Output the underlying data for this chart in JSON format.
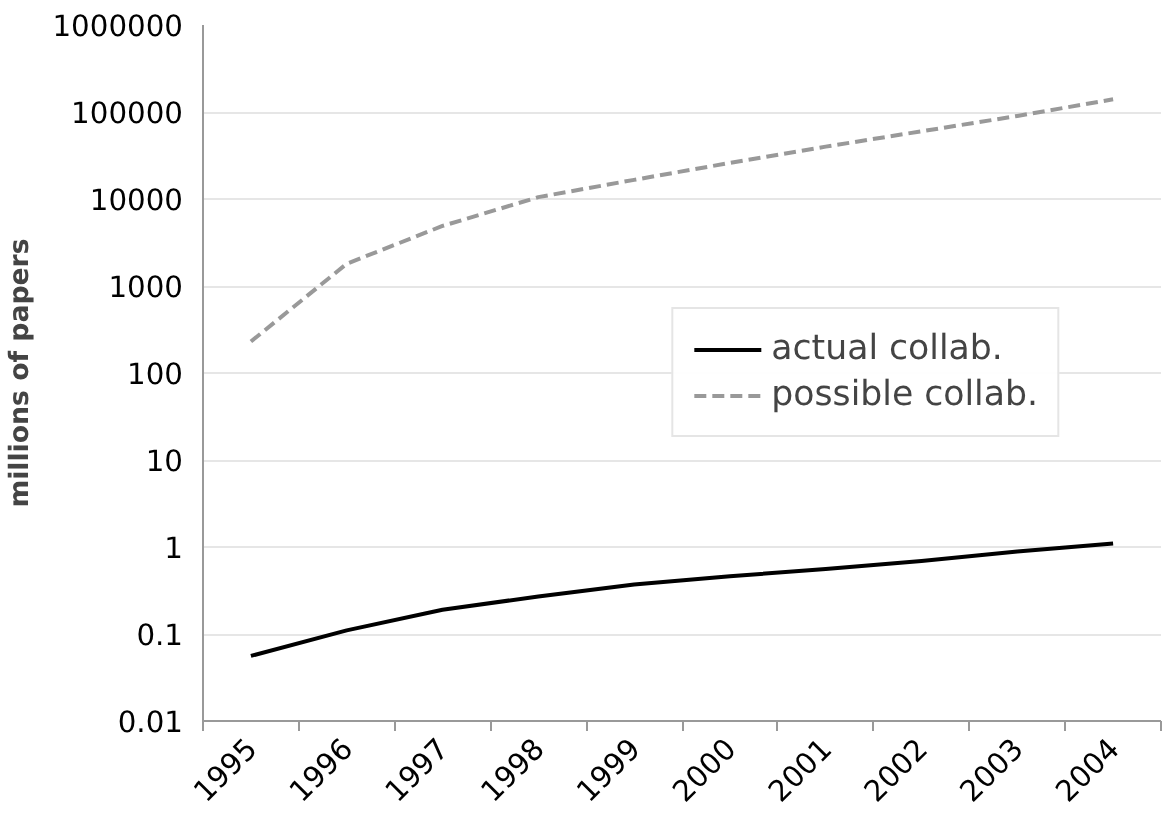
{
  "chart_data": {
    "type": "line",
    "ylabel": "millions of papers",
    "log": true,
    "categories": [
      "1995",
      "1996",
      "1997",
      "1998",
      "1999",
      "2000",
      "2001",
      "2002",
      "2003",
      "2004"
    ],
    "series": [
      {
        "name": "actual collab.",
        "color": "#000000",
        "line_style": "solid",
        "values": [
          0.056,
          0.11,
          0.19,
          0.27,
          0.37,
          0.46,
          0.56,
          0.69,
          0.89,
          1.1
        ]
      },
      {
        "name": "possible collab.",
        "color": "#999999",
        "line_style": "dashed",
        "values": [
          230,
          1800,
          4900,
          10500,
          16600,
          26000,
          40000,
          60000,
          90000,
          140000
        ]
      }
    ],
    "ylim": [
      0.01,
      1000000
    ],
    "yticks": [
      0.01,
      0.1,
      1,
      10,
      100,
      1000,
      10000,
      100000,
      1000000
    ],
    "grid": "y",
    "legend": "right",
    "marker": "none"
  }
}
